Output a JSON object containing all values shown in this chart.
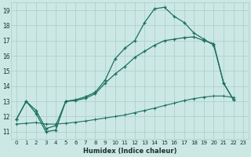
{
  "xlabel": "Humidex (Indice chaleur)",
  "background_color": "#cce8e4",
  "grid_color": "#aaccc8",
  "line_color": "#1a7060",
  "xlim": [
    -0.5,
    23.5
  ],
  "ylim": [
    10.5,
    19.5
  ],
  "xticks": [
    0,
    1,
    2,
    3,
    4,
    5,
    6,
    7,
    8,
    9,
    10,
    11,
    12,
    13,
    14,
    15,
    16,
    17,
    18,
    19,
    20,
    21,
    22,
    23
  ],
  "yticks": [
    11,
    12,
    13,
    14,
    15,
    16,
    17,
    18,
    19
  ],
  "curve1_x": [
    0,
    1,
    2,
    3,
    4,
    5,
    6,
    7,
    8,
    9,
    10,
    11,
    12,
    13,
    14,
    15,
    16,
    17,
    18,
    19,
    20,
    21,
    22
  ],
  "curve1_y": [
    11.8,
    13.0,
    12.2,
    11.0,
    11.1,
    13.0,
    13.1,
    13.3,
    13.6,
    14.4,
    15.8,
    16.5,
    17.0,
    18.2,
    19.1,
    19.2,
    18.6,
    18.2,
    17.5,
    17.1,
    16.7,
    14.2,
    13.1
  ],
  "curve2_x": [
    0,
    1,
    2,
    3,
    4,
    5,
    6,
    7,
    8,
    9,
    10,
    11,
    12,
    13,
    14,
    15,
    16,
    17,
    18,
    19,
    20,
    21,
    22
  ],
  "curve2_y": [
    11.8,
    13.0,
    12.4,
    11.2,
    11.4,
    13.0,
    13.05,
    13.2,
    13.5,
    14.2,
    14.8,
    15.3,
    15.9,
    16.3,
    16.7,
    17.0,
    17.1,
    17.2,
    17.25,
    17.0,
    16.8,
    14.2,
    13.1
  ],
  "curve3_x": [
    0,
    1,
    2,
    3,
    4,
    5,
    6,
    7,
    8,
    9,
    10,
    11,
    12,
    13,
    14,
    15,
    16,
    17,
    18,
    19,
    20,
    21,
    22
  ],
  "curve3_y": [
    11.5,
    11.55,
    11.6,
    11.5,
    11.5,
    11.55,
    11.62,
    11.7,
    11.8,
    11.9,
    12.0,
    12.1,
    12.25,
    12.4,
    12.55,
    12.72,
    12.88,
    13.05,
    13.18,
    13.28,
    13.35,
    13.35,
    13.25
  ]
}
